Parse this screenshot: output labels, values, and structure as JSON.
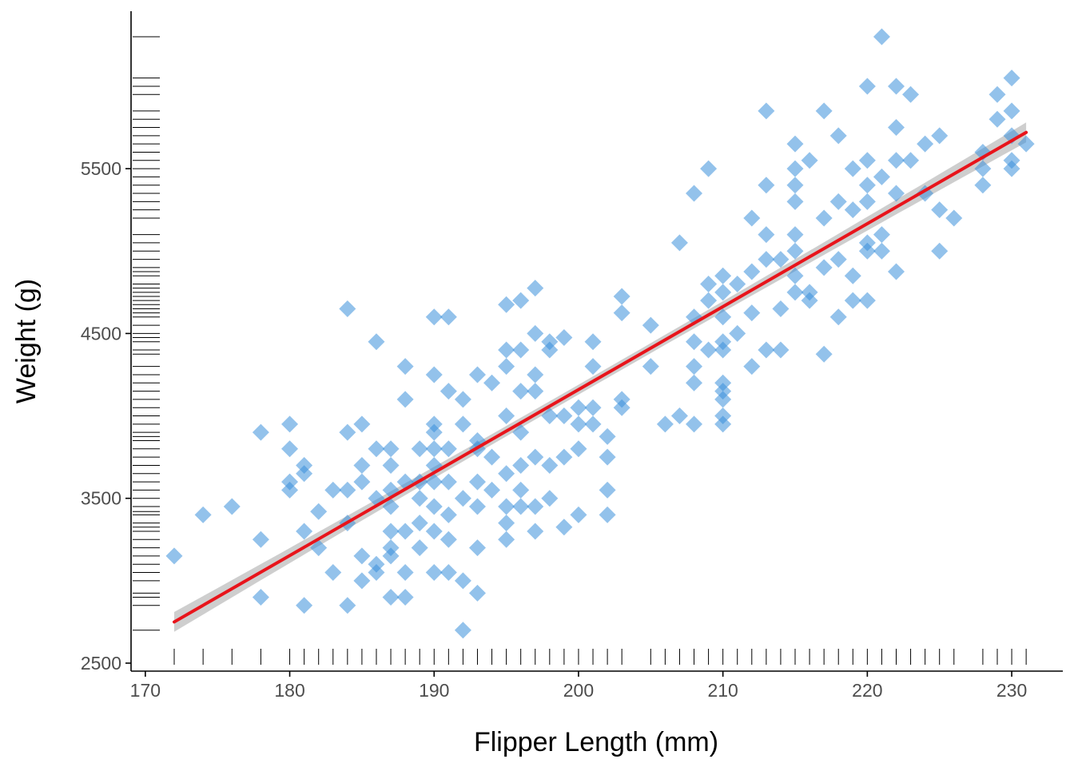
{
  "colors": {
    "background": "#ffffff",
    "points": "#3a8fdb",
    "fit_line": "#e8141b",
    "ci_band": "#bdbdbd",
    "axis": "#000000",
    "tick_text": "#4d4d4d"
  },
  "chart_data": {
    "type": "scatter",
    "title": "",
    "xlabel": "Flipper Length (mm)",
    "ylabel": "Weight (g)",
    "xlim": [
      170,
      233
    ],
    "ylim": [
      2480,
      6350
    ],
    "x_ticks": [
      170,
      180,
      190,
      200,
      210,
      220,
      230
    ],
    "y_ticks": [
      2500,
      3500,
      4500,
      5500
    ],
    "x_tick_labels": [
      "170",
      "180",
      "190",
      "200",
      "210",
      "220",
      "230"
    ],
    "y_tick_labels": [
      "2500",
      "3500",
      "4500",
      "5500"
    ],
    "grid": false,
    "legend": "none",
    "marker": "diamond",
    "rugs": [
      "x-bottom",
      "y-left"
    ],
    "fit": {
      "method": "linear",
      "x_range": [
        172,
        231
      ],
      "y_range": [
        2750,
        5720
      ],
      "ci_halfwidth": [
        60,
        30,
        60
      ]
    },
    "points": [
      [
        172,
        3150
      ],
      [
        174,
        3400
      ],
      [
        176,
        3450
      ],
      [
        178,
        3250
      ],
      [
        178,
        3900
      ],
      [
        178,
        2900
      ],
      [
        180,
        3950
      ],
      [
        180,
        3800
      ],
      [
        180,
        3600
      ],
      [
        180,
        3550
      ],
      [
        181,
        3700
      ],
      [
        181,
        3650
      ],
      [
        181,
        3300
      ],
      [
        181,
        2850
      ],
      [
        182,
        3200
      ],
      [
        182,
        3420
      ],
      [
        183,
        3550
      ],
      [
        183,
        3050
      ],
      [
        184,
        4650
      ],
      [
        184,
        3900
      ],
      [
        184,
        3550
      ],
      [
        184,
        3350
      ],
      [
        184,
        2850
      ],
      [
        185,
        3950
      ],
      [
        185,
        3700
      ],
      [
        185,
        3600
      ],
      [
        185,
        3150
      ],
      [
        185,
        3000
      ],
      [
        186,
        4450
      ],
      [
        186,
        3800
      ],
      [
        186,
        3500
      ],
      [
        186,
        3100
      ],
      [
        186,
        3050
      ],
      [
        187,
        3800
      ],
      [
        187,
        3700
      ],
      [
        187,
        3550
      ],
      [
        187,
        3450
      ],
      [
        187,
        3300
      ],
      [
        187,
        3200
      ],
      [
        187,
        3150
      ],
      [
        187,
        2900
      ],
      [
        188,
        4300
      ],
      [
        188,
        4100
      ],
      [
        188,
        3600
      ],
      [
        188,
        3300
      ],
      [
        188,
        3050
      ],
      [
        188,
        2900
      ],
      [
        189,
        3800
      ],
      [
        189,
        3600
      ],
      [
        189,
        3500
      ],
      [
        189,
        3350
      ],
      [
        189,
        3200
      ],
      [
        190,
        4600
      ],
      [
        190,
        4250
      ],
      [
        190,
        3950
      ],
      [
        190,
        3900
      ],
      [
        190,
        3800
      ],
      [
        190,
        3700
      ],
      [
        190,
        3600
      ],
      [
        190,
        3450
      ],
      [
        190,
        3300
      ],
      [
        190,
        3050
      ],
      [
        191,
        4600
      ],
      [
        191,
        4150
      ],
      [
        191,
        3800
      ],
      [
        191,
        3600
      ],
      [
        191,
        3400
      ],
      [
        191,
        3250
      ],
      [
        191,
        3050
      ],
      [
        192,
        4100
      ],
      [
        192,
        3950
      ],
      [
        192,
        3500
      ],
      [
        192,
        3000
      ],
      [
        192,
        2700
      ],
      [
        193,
        4250
      ],
      [
        193,
        3850
      ],
      [
        193,
        3800
      ],
      [
        193,
        3600
      ],
      [
        193,
        3450
      ],
      [
        193,
        3200
      ],
      [
        193,
        2925
      ],
      [
        194,
        4200
      ],
      [
        194,
        3750
      ],
      [
        194,
        3550
      ],
      [
        195,
        4675
      ],
      [
        195,
        4400
      ],
      [
        195,
        4300
      ],
      [
        195,
        4000
      ],
      [
        195,
        3650
      ],
      [
        195,
        3450
      ],
      [
        195,
        3350
      ],
      [
        195,
        3250
      ],
      [
        196,
        4700
      ],
      [
        196,
        4400
      ],
      [
        196,
        4150
      ],
      [
        196,
        3900
      ],
      [
        196,
        3700
      ],
      [
        196,
        3550
      ],
      [
        196,
        3450
      ],
      [
        197,
        4775
      ],
      [
        197,
        4500
      ],
      [
        197,
        4250
      ],
      [
        197,
        4150
      ],
      [
        197,
        3750
      ],
      [
        197,
        3450
      ],
      [
        197,
        3300
      ],
      [
        198,
        4450
      ],
      [
        198,
        4400
      ],
      [
        198,
        4000
      ],
      [
        198,
        3700
      ],
      [
        198,
        3500
      ],
      [
        199,
        4475
      ],
      [
        199,
        4000
      ],
      [
        199,
        3750
      ],
      [
        199,
        3325
      ],
      [
        200,
        4050
      ],
      [
        200,
        3950
      ],
      [
        200,
        3800
      ],
      [
        200,
        3400
      ],
      [
        201,
        4450
      ],
      [
        201,
        4300
      ],
      [
        201,
        4050
      ],
      [
        201,
        3950
      ],
      [
        202,
        3875
      ],
      [
        202,
        3750
      ],
      [
        202,
        3550
      ],
      [
        202,
        3400
      ],
      [
        203,
        4725
      ],
      [
        203,
        4625
      ],
      [
        203,
        4100
      ],
      [
        203,
        4050
      ],
      [
        205,
        4550
      ],
      [
        205,
        4300
      ],
      [
        206,
        3950
      ],
      [
        207,
        5050
      ],
      [
        207,
        4000
      ],
      [
        208,
        5350
      ],
      [
        208,
        4600
      ],
      [
        208,
        4450
      ],
      [
        208,
        4300
      ],
      [
        208,
        4200
      ],
      [
        208,
        3950
      ],
      [
        209,
        5500
      ],
      [
        209,
        4800
      ],
      [
        209,
        4700
      ],
      [
        209,
        4400
      ],
      [
        210,
        4850
      ],
      [
        210,
        4750
      ],
      [
        210,
        4600
      ],
      [
        210,
        4450
      ],
      [
        210,
        4400
      ],
      [
        210,
        4200
      ],
      [
        210,
        4150
      ],
      [
        210,
        4100
      ],
      [
        210,
        4000
      ],
      [
        210,
        3950
      ],
      [
        211,
        4800
      ],
      [
        211,
        4500
      ],
      [
        212,
        5200
      ],
      [
        212,
        4875
      ],
      [
        212,
        4625
      ],
      [
        212,
        4300
      ],
      [
        213,
        5850
      ],
      [
        213,
        5400
      ],
      [
        213,
        5100
      ],
      [
        213,
        4950
      ],
      [
        213,
        4400
      ],
      [
        214,
        4950
      ],
      [
        214,
        4650
      ],
      [
        214,
        4400
      ],
      [
        215,
        5650
      ],
      [
        215,
        5500
      ],
      [
        215,
        5400
      ],
      [
        215,
        5300
      ],
      [
        215,
        5100
      ],
      [
        215,
        5000
      ],
      [
        215,
        4850
      ],
      [
        215,
        4750
      ],
      [
        216,
        5550
      ],
      [
        216,
        4750
      ],
      [
        216,
        4700
      ],
      [
        217,
        5850
      ],
      [
        217,
        5200
      ],
      [
        217,
        4900
      ],
      [
        217,
        4375
      ],
      [
        218,
        5700
      ],
      [
        218,
        5300
      ],
      [
        218,
        4950
      ],
      [
        218,
        4600
      ],
      [
        219,
        5500
      ],
      [
        219,
        5250
      ],
      [
        219,
        4850
      ],
      [
        219,
        4700
      ],
      [
        220,
        6000
      ],
      [
        220,
        5550
      ],
      [
        220,
        5400
      ],
      [
        220,
        5300
      ],
      [
        220,
        5050
      ],
      [
        220,
        5000
      ],
      [
        220,
        4700
      ],
      [
        221,
        6300
      ],
      [
        221,
        5450
      ],
      [
        221,
        5100
      ],
      [
        221,
        5000
      ],
      [
        222,
        6000
      ],
      [
        222,
        5750
      ],
      [
        222,
        5550
      ],
      [
        222,
        5350
      ],
      [
        222,
        4875
      ],
      [
        223,
        5950
      ],
      [
        223,
        5550
      ],
      [
        224,
        5650
      ],
      [
        224,
        5350
      ],
      [
        225,
        5700
      ],
      [
        225,
        5250
      ],
      [
        225,
        5000
      ],
      [
        226,
        5200
      ],
      [
        228,
        5600
      ],
      [
        228,
        5500
      ],
      [
        228,
        5400
      ],
      [
        229,
        5950
      ],
      [
        229,
        5800
      ],
      [
        230,
        6050
      ],
      [
        230,
        5850
      ],
      [
        230,
        5700
      ],
      [
        230,
        5550
      ],
      [
        230,
        5500
      ],
      [
        231,
        5650
      ]
    ]
  }
}
